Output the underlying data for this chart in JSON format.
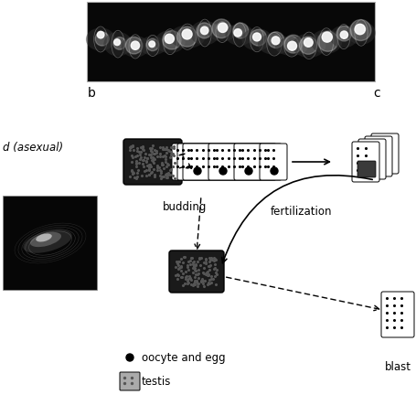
{
  "bg_color": "#ffffff",
  "label_b": "b",
  "label_c": "c",
  "label_asexual": "d (asexual)",
  "label_budding": "budding",
  "label_fertilization": "fertilization",
  "label_blast": "blast",
  "legend_oocyte": "oocyte and egg",
  "legend_testis": "testis",
  "figsize": [
    4.56,
    4.56
  ],
  "dpi": 100
}
